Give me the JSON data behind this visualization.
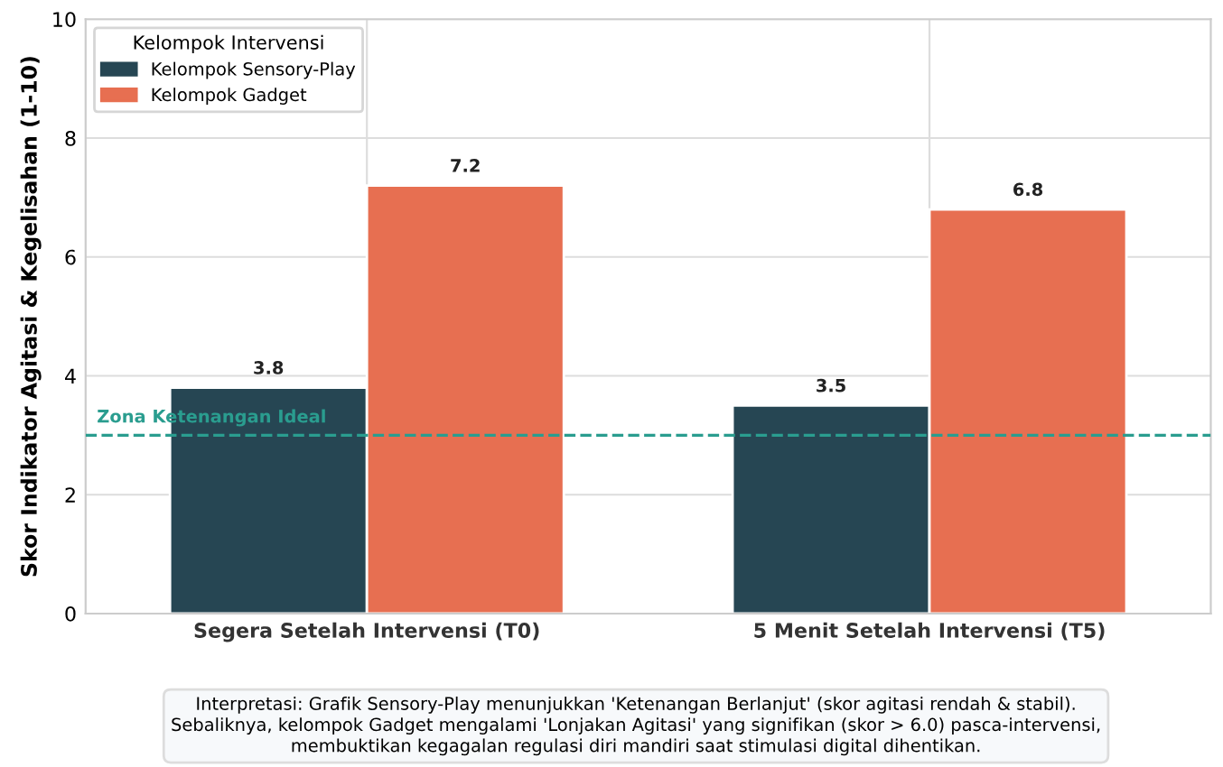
{
  "chart_data": {
    "type": "bar",
    "ylabel": "Skor Indikator Agitasi & Kegelisahan (1-10)",
    "categories": [
      "Segera Setelah Intervensi (T0)",
      "5 Menit Setelah Intervensi (T5)"
    ],
    "series": [
      {
        "name": "Kelompok Sensory-Play",
        "color": "#264653",
        "values": [
          3.8,
          3.5
        ]
      },
      {
        "name": "Kelompok Gadget",
        "color": "#e76f51",
        "values": [
          7.2,
          6.8
        ]
      }
    ],
    "legend_title": "Kelompok Intervensi",
    "legend": "top left",
    "ylim": [
      0,
      10
    ],
    "yticks": [
      0,
      2,
      4,
      6,
      8,
      10
    ],
    "grid": true,
    "data_labels": true,
    "ref_lines": [
      {
        "axis": "y",
        "value": 3,
        "label": "Zona Ketenangan Ideal",
        "color": "#2a9d8f",
        "line_style": "dashed"
      }
    ],
    "annotations": [
      "Interpretasi: Grafik Sensory-Play menunjukkan 'Ketenangan Berlanjut' (skor agitasi rendah & stabil).\nSebaliknya, kelompok Gadget mengalami 'Lonjakan Agitasi' yang signifikan (skor > 6.0) pasca-intervensi,\nmembuktikan kegagalan regulasi diri mandiri saat stimulasi digital dihentikan."
    ]
  }
}
